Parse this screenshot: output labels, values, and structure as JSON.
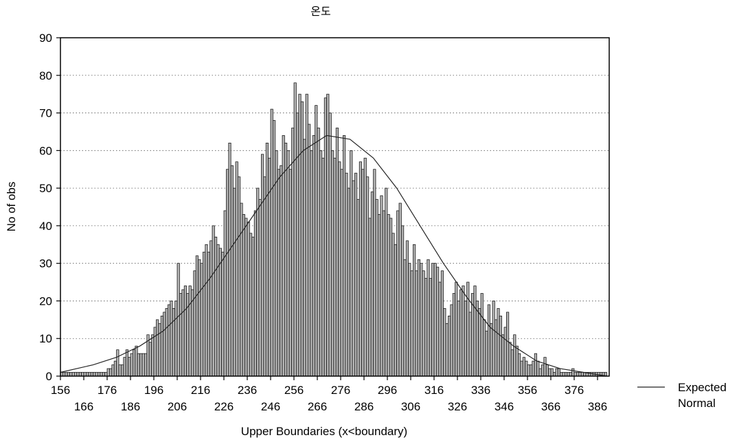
{
  "chart_data": {
    "type": "bar",
    "title": "온도",
    "xlabel": "Upper Boundaries (x<boundary)",
    "ylabel": "No of obs",
    "xlim": [
      156,
      391
    ],
    "ylim": [
      0,
      90
    ],
    "y_ticks": [
      "0",
      "10",
      "20",
      "30",
      "40",
      "50",
      "60",
      "70",
      "80",
      "90"
    ],
    "x_ticks_upper": [
      "156",
      "176",
      "196",
      "216",
      "236",
      "256",
      "276",
      "296",
      "316",
      "336",
      "356",
      "376"
    ],
    "x_ticks_lower": [
      "166",
      "186",
      "206",
      "226",
      "246",
      "266",
      "286",
      "306",
      "326",
      "346",
      "366",
      "386"
    ],
    "grid": true,
    "bar_width": 1,
    "series": [
      {
        "values": [
          [
            157,
            1
          ],
          [
            158,
            1
          ],
          [
            159,
            1
          ],
          [
            160,
            1
          ],
          [
            161,
            1
          ],
          [
            162,
            1
          ],
          [
            163,
            1
          ],
          [
            164,
            1
          ],
          [
            165,
            1
          ],
          [
            166,
            1
          ],
          [
            167,
            1
          ],
          [
            168,
            1
          ],
          [
            169,
            1
          ],
          [
            170,
            1
          ],
          [
            171,
            1
          ],
          [
            172,
            1
          ],
          [
            173,
            1
          ],
          [
            174,
            1
          ],
          [
            175,
            1
          ],
          [
            176,
            1
          ],
          [
            177,
            2
          ],
          [
            178,
            2
          ],
          [
            179,
            3
          ],
          [
            180,
            4
          ],
          [
            181,
            7
          ],
          [
            182,
            3
          ],
          [
            183,
            3
          ],
          [
            184,
            5
          ],
          [
            185,
            7
          ],
          [
            186,
            5
          ],
          [
            187,
            6
          ],
          [
            188,
            7
          ],
          [
            189,
            8
          ],
          [
            190,
            6
          ],
          [
            191,
            6
          ],
          [
            192,
            6
          ],
          [
            193,
            6
          ],
          [
            194,
            11
          ],
          [
            195,
            9
          ],
          [
            196,
            11
          ],
          [
            197,
            13
          ],
          [
            198,
            15
          ],
          [
            199,
            14
          ],
          [
            200,
            16
          ],
          [
            201,
            17
          ],
          [
            202,
            18
          ],
          [
            203,
            19
          ],
          [
            204,
            20
          ],
          [
            205,
            18
          ],
          [
            206,
            20
          ],
          [
            207,
            30
          ],
          [
            208,
            22
          ],
          [
            209,
            23
          ],
          [
            210,
            24
          ],
          [
            211,
            22
          ],
          [
            212,
            24
          ],
          [
            213,
            23
          ],
          [
            214,
            28
          ],
          [
            215,
            32
          ],
          [
            216,
            31
          ],
          [
            217,
            30
          ],
          [
            218,
            33
          ],
          [
            219,
            35
          ],
          [
            220,
            33
          ],
          [
            221,
            36
          ],
          [
            222,
            40
          ],
          [
            223,
            37
          ],
          [
            224,
            35
          ],
          [
            225,
            34
          ],
          [
            226,
            33
          ],
          [
            227,
            44
          ],
          [
            228,
            55
          ],
          [
            229,
            62
          ],
          [
            230,
            56
          ],
          [
            231,
            50
          ],
          [
            232,
            57
          ],
          [
            233,
            53
          ],
          [
            234,
            46
          ],
          [
            235,
            43
          ],
          [
            236,
            42
          ],
          [
            237,
            41
          ],
          [
            238,
            38
          ],
          [
            239,
            37
          ],
          [
            240,
            44
          ],
          [
            241,
            50
          ],
          [
            242,
            47
          ],
          [
            243,
            59
          ],
          [
            244,
            53
          ],
          [
            245,
            62
          ],
          [
            246,
            58
          ],
          [
            247,
            71
          ],
          [
            248,
            68
          ],
          [
            249,
            60
          ],
          [
            250,
            55
          ],
          [
            251,
            56
          ],
          [
            252,
            64
          ],
          [
            253,
            62
          ],
          [
            254,
            60
          ],
          [
            255,
            55
          ],
          [
            256,
            66
          ],
          [
            257,
            78
          ],
          [
            258,
            70
          ],
          [
            259,
            75
          ],
          [
            260,
            73
          ],
          [
            261,
            63
          ],
          [
            262,
            75
          ],
          [
            263,
            67
          ],
          [
            264,
            60
          ],
          [
            265,
            64
          ],
          [
            266,
            72
          ],
          [
            267,
            66
          ],
          [
            268,
            60
          ],
          [
            269,
            58
          ],
          [
            270,
            74
          ],
          [
            271,
            75
          ],
          [
            272,
            70
          ],
          [
            273,
            60
          ],
          [
            274,
            58
          ],
          [
            275,
            66
          ],
          [
            276,
            57
          ],
          [
            277,
            55
          ],
          [
            278,
            64
          ],
          [
            279,
            54
          ],
          [
            280,
            50
          ],
          [
            281,
            60
          ],
          [
            282,
            52
          ],
          [
            283,
            54
          ],
          [
            284,
            47
          ],
          [
            285,
            57
          ],
          [
            286,
            55
          ],
          [
            287,
            58
          ],
          [
            288,
            53
          ],
          [
            289,
            42
          ],
          [
            290,
            49
          ],
          [
            291,
            55
          ],
          [
            292,
            47
          ],
          [
            293,
            43
          ],
          [
            294,
            48
          ],
          [
            295,
            44
          ],
          [
            296,
            50
          ],
          [
            297,
            43
          ],
          [
            298,
            42
          ],
          [
            299,
            38
          ],
          [
            300,
            35
          ],
          [
            301,
            44
          ],
          [
            302,
            46
          ],
          [
            303,
            40
          ],
          [
            304,
            31
          ],
          [
            305,
            36
          ],
          [
            306,
            30
          ],
          [
            307,
            28
          ],
          [
            308,
            35
          ],
          [
            309,
            28
          ],
          [
            310,
            31
          ],
          [
            311,
            30
          ],
          [
            312,
            28
          ],
          [
            313,
            26
          ],
          [
            314,
            31
          ],
          [
            315,
            26
          ],
          [
            316,
            30
          ],
          [
            317,
            30
          ],
          [
            318,
            29
          ],
          [
            319,
            25
          ],
          [
            320,
            28
          ],
          [
            321,
            18
          ],
          [
            322,
            14
          ],
          [
            323,
            16
          ],
          [
            324,
            19
          ],
          [
            325,
            22
          ],
          [
            326,
            25
          ],
          [
            327,
            20
          ],
          [
            328,
            23
          ],
          [
            329,
            24
          ],
          [
            330,
            20
          ],
          [
            331,
            25
          ],
          [
            332,
            17
          ],
          [
            333,
            22
          ],
          [
            334,
            24
          ],
          [
            335,
            20
          ],
          [
            336,
            18
          ],
          [
            337,
            22
          ],
          [
            338,
            15
          ],
          [
            339,
            12
          ],
          [
            340,
            19
          ],
          [
            341,
            14
          ],
          [
            342,
            20
          ],
          [
            343,
            15
          ],
          [
            344,
            18
          ],
          [
            345,
            16
          ],
          [
            346,
            11
          ],
          [
            347,
            13
          ],
          [
            348,
            17
          ],
          [
            349,
            9
          ],
          [
            350,
            7
          ],
          [
            351,
            11
          ],
          [
            352,
            8
          ],
          [
            353,
            6
          ],
          [
            354,
            4
          ],
          [
            355,
            5
          ],
          [
            356,
            4
          ],
          [
            357,
            3
          ],
          [
            358,
            3
          ],
          [
            359,
            4
          ],
          [
            360,
            6
          ],
          [
            361,
            4
          ],
          [
            362,
            2
          ],
          [
            363,
            3
          ],
          [
            364,
            5
          ],
          [
            365,
            3
          ],
          [
            366,
            2
          ],
          [
            367,
            2
          ],
          [
            368,
            1
          ],
          [
            369,
            2
          ],
          [
            370,
            2
          ],
          [
            371,
            1
          ],
          [
            372,
            1
          ],
          [
            373,
            1
          ],
          [
            374,
            1
          ],
          [
            375,
            1
          ],
          [
            376,
            2
          ],
          [
            377,
            1
          ],
          [
            378,
            1
          ],
          [
            379,
            1
          ],
          [
            380,
            1
          ],
          [
            381,
            1
          ],
          [
            382,
            1
          ],
          [
            383,
            1
          ],
          [
            384,
            1
          ],
          [
            385,
            1
          ],
          [
            386,
            1
          ],
          [
            387,
            1
          ],
          [
            388,
            1
          ],
          [
            389,
            1
          ],
          [
            390,
            1
          ]
        ]
      },
      {
        "name": "Expected Normal",
        "type": "line",
        "values": [
          [
            156,
            1
          ],
          [
            170,
            3
          ],
          [
            180,
            5
          ],
          [
            190,
            8
          ],
          [
            200,
            12
          ],
          [
            210,
            18
          ],
          [
            220,
            26
          ],
          [
            230,
            35
          ],
          [
            240,
            44
          ],
          [
            250,
            53
          ],
          [
            260,
            60
          ],
          [
            270,
            64
          ],
          [
            280,
            63
          ],
          [
            290,
            58
          ],
          [
            300,
            50
          ],
          [
            310,
            40
          ],
          [
            320,
            30
          ],
          [
            330,
            21
          ],
          [
            340,
            13
          ],
          [
            350,
            8
          ],
          [
            360,
            4
          ],
          [
            370,
            2
          ],
          [
            380,
            1
          ],
          [
            390,
            0
          ]
        ]
      }
    ],
    "legend": {
      "position": "right",
      "entries": [
        "Expected",
        "Normal"
      ]
    }
  }
}
